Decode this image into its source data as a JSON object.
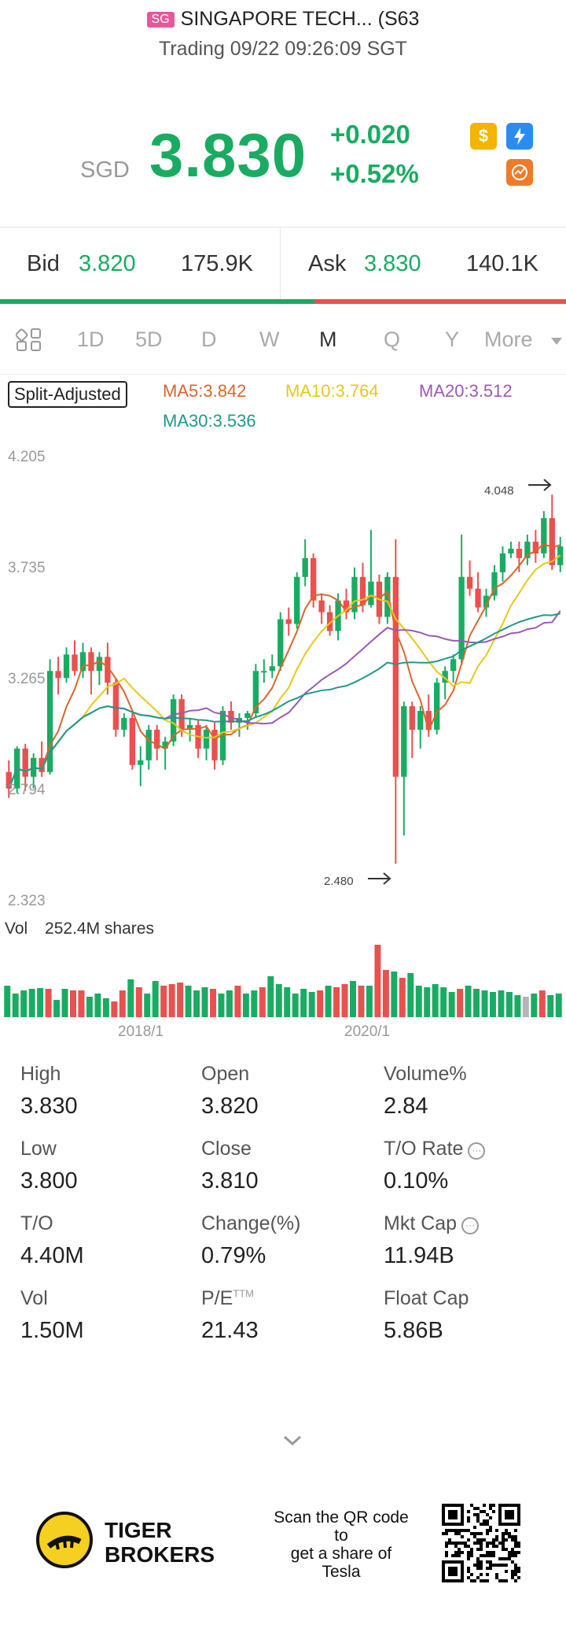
{
  "header": {
    "market_badge": "SG",
    "title": "SINGAPORE TECH... (S63",
    "status": "Trading 09/22 09:26:09 SGT"
  },
  "quote": {
    "currency": "SGD",
    "price": "3.830",
    "change": "+0.020",
    "change_pct": "+0.52%",
    "colors": {
      "up": "#1aab62",
      "down": "#e9504e"
    }
  },
  "icons": [
    "dollar-icon",
    "lightning-icon",
    "chart-icon"
  ],
  "bid_ask": {
    "bid_label": "Bid",
    "bid_price": "3.820",
    "bid_size": "175.9K",
    "ask_label": "Ask",
    "ask_price": "3.830",
    "ask_size": "140.1K",
    "bid_ratio": 0.555
  },
  "tabs": [
    "1D",
    "5D",
    "D",
    "W",
    "M",
    "Q",
    "Y",
    "More"
  ],
  "active_tab": "M",
  "indicators": {
    "split": "Split-Adjusted",
    "ma5": "MA5:3.842",
    "ma10": "MA10:3.764",
    "ma20": "MA20:3.512",
    "ma30": "MA30:3.536",
    "colors": {
      "ma5": "#d9662b",
      "ma10": "#e8c81a",
      "ma20": "#9b59b6",
      "ma30": "#1e9a8a"
    }
  },
  "chart": {
    "y_ticks": [
      "4.205",
      "3.735",
      "3.265",
      "2.794",
      "2.323"
    ],
    "high_marker": "4.048",
    "low_marker": "2.480",
    "x_ticks": [
      "2018/1",
      "2020/1"
    ],
    "volume_label": "Vol",
    "volume_value": "252.4M shares"
  },
  "chart_data": {
    "type": "candlestick",
    "ylim": [
      2.323,
      4.205
    ],
    "candles": [
      {
        "o": 2.87,
        "c": 2.8,
        "h": 2.92,
        "l": 2.76,
        "up": false
      },
      {
        "o": 2.8,
        "c": 2.97,
        "h": 2.98,
        "l": 2.78,
        "up": true
      },
      {
        "o": 2.97,
        "c": 2.85,
        "h": 2.99,
        "l": 2.79,
        "up": false
      },
      {
        "o": 2.85,
        "c": 2.93,
        "h": 2.95,
        "l": 2.8,
        "up": true
      },
      {
        "o": 2.93,
        "c": 2.87,
        "h": 3.0,
        "l": 2.85,
        "up": false
      },
      {
        "o": 2.87,
        "c": 3.3,
        "h": 3.35,
        "l": 2.86,
        "up": true
      },
      {
        "o": 3.3,
        "c": 3.27,
        "h": 3.36,
        "l": 3.2,
        "up": false
      },
      {
        "o": 3.27,
        "c": 3.37,
        "h": 3.4,
        "l": 3.25,
        "up": true
      },
      {
        "o": 3.37,
        "c": 3.3,
        "h": 3.43,
        "l": 3.28,
        "up": false
      },
      {
        "o": 3.3,
        "c": 3.38,
        "h": 3.42,
        "l": 3.27,
        "up": true
      },
      {
        "o": 3.38,
        "c": 3.3,
        "h": 3.4,
        "l": 3.2,
        "up": false
      },
      {
        "o": 3.3,
        "c": 3.36,
        "h": 3.38,
        "l": 3.24,
        "up": true
      },
      {
        "o": 3.36,
        "c": 3.25,
        "h": 3.42,
        "l": 3.2,
        "up": false
      },
      {
        "o": 3.25,
        "c": 3.05,
        "h": 3.27,
        "l": 3.02,
        "up": false
      },
      {
        "o": 3.05,
        "c": 3.1,
        "h": 3.12,
        "l": 3.02,
        "up": true
      },
      {
        "o": 3.1,
        "c": 2.9,
        "h": 3.12,
        "l": 2.88,
        "up": false
      },
      {
        "o": 2.9,
        "c": 2.92,
        "h": 2.98,
        "l": 2.81,
        "up": true
      },
      {
        "o": 2.92,
        "c": 3.05,
        "h": 3.07,
        "l": 2.88,
        "up": true
      },
      {
        "o": 3.05,
        "c": 2.97,
        "h": 3.07,
        "l": 2.92,
        "up": false
      },
      {
        "o": 2.97,
        "c": 3.0,
        "h": 3.02,
        "l": 2.88,
        "up": true
      },
      {
        "o": 3.0,
        "c": 3.18,
        "h": 3.2,
        "l": 2.98,
        "up": true
      },
      {
        "o": 3.18,
        "c": 3.05,
        "h": 3.2,
        "l": 3.02,
        "up": false
      },
      {
        "o": 3.05,
        "c": 3.07,
        "h": 3.1,
        "l": 3.0,
        "up": true
      },
      {
        "o": 3.07,
        "c": 2.97,
        "h": 3.09,
        "l": 2.93,
        "up": false
      },
      {
        "o": 2.97,
        "c": 3.05,
        "h": 3.07,
        "l": 2.92,
        "up": true
      },
      {
        "o": 3.05,
        "c": 2.92,
        "h": 3.08,
        "l": 2.88,
        "up": false
      },
      {
        "o": 2.92,
        "c": 3.13,
        "h": 3.15,
        "l": 2.9,
        "up": true
      },
      {
        "o": 3.13,
        "c": 3.08,
        "h": 3.17,
        "l": 3.05,
        "up": false
      },
      {
        "o": 3.08,
        "c": 3.1,
        "h": 3.12,
        "l": 3.02,
        "up": true
      },
      {
        "o": 3.1,
        "c": 3.12,
        "h": 3.13,
        "l": 3.05,
        "up": true
      },
      {
        "o": 3.12,
        "c": 3.3,
        "h": 3.33,
        "l": 3.1,
        "up": true
      },
      {
        "o": 3.3,
        "c": 3.3,
        "h": 3.35,
        "l": 3.25,
        "up": true
      },
      {
        "o": 3.3,
        "c": 3.32,
        "h": 3.37,
        "l": 3.27,
        "up": true
      },
      {
        "o": 3.32,
        "c": 3.52,
        "h": 3.55,
        "l": 3.3,
        "up": true
      },
      {
        "o": 3.52,
        "c": 3.5,
        "h": 3.57,
        "l": 3.45,
        "up": false
      },
      {
        "o": 3.5,
        "c": 3.7,
        "h": 3.72,
        "l": 3.48,
        "up": true
      },
      {
        "o": 3.7,
        "c": 3.78,
        "h": 3.86,
        "l": 3.66,
        "up": true
      },
      {
        "o": 3.78,
        "c": 3.6,
        "h": 3.8,
        "l": 3.57,
        "up": false
      },
      {
        "o": 3.6,
        "c": 3.55,
        "h": 3.63,
        "l": 3.5,
        "up": false
      },
      {
        "o": 3.55,
        "c": 3.47,
        "h": 3.58,
        "l": 3.45,
        "up": false
      },
      {
        "o": 3.47,
        "c": 3.6,
        "h": 3.63,
        "l": 3.43,
        "up": true
      },
      {
        "o": 3.6,
        "c": 3.55,
        "h": 3.65,
        "l": 3.52,
        "up": false
      },
      {
        "o": 3.55,
        "c": 3.7,
        "h": 3.74,
        "l": 3.52,
        "up": true
      },
      {
        "o": 3.7,
        "c": 3.58,
        "h": 3.76,
        "l": 3.55,
        "up": false
      },
      {
        "o": 3.58,
        "c": 3.68,
        "h": 3.9,
        "l": 3.57,
        "up": true
      },
      {
        "o": 3.68,
        "c": 3.53,
        "h": 3.71,
        "l": 3.5,
        "up": false
      },
      {
        "o": 3.53,
        "c": 3.7,
        "h": 3.72,
        "l": 3.5,
        "up": true
      },
      {
        "o": 3.7,
        "c": 2.85,
        "h": 3.86,
        "l": 2.48,
        "up": false
      },
      {
        "o": 2.85,
        "c": 3.15,
        "h": 3.17,
        "l": 2.6,
        "up": true
      },
      {
        "o": 3.15,
        "c": 3.05,
        "h": 3.17,
        "l": 2.93,
        "up": false
      },
      {
        "o": 3.05,
        "c": 3.13,
        "h": 3.15,
        "l": 2.97,
        "up": true
      },
      {
        "o": 3.13,
        "c": 3.05,
        "h": 3.2,
        "l": 3.02,
        "up": false
      },
      {
        "o": 3.05,
        "c": 3.25,
        "h": 3.27,
        "l": 3.03,
        "up": true
      },
      {
        "o": 3.25,
        "c": 3.3,
        "h": 3.32,
        "l": 3.18,
        "up": true
      },
      {
        "o": 3.3,
        "c": 3.35,
        "h": 3.37,
        "l": 3.25,
        "up": true
      },
      {
        "o": 3.35,
        "c": 3.7,
        "h": 3.88,
        "l": 3.33,
        "up": true
      },
      {
        "o": 3.7,
        "c": 3.65,
        "h": 3.77,
        "l": 3.62,
        "up": false
      },
      {
        "o": 3.65,
        "c": 3.57,
        "h": 3.72,
        "l": 3.55,
        "up": false
      },
      {
        "o": 3.57,
        "c": 3.62,
        "h": 3.65,
        "l": 3.53,
        "up": true
      },
      {
        "o": 3.62,
        "c": 3.72,
        "h": 3.75,
        "l": 3.6,
        "up": true
      },
      {
        "o": 3.72,
        "c": 3.8,
        "h": 3.83,
        "l": 3.68,
        "up": true
      },
      {
        "o": 3.8,
        "c": 3.82,
        "h": 3.85,
        "l": 3.78,
        "up": true
      },
      {
        "o": 3.82,
        "c": 3.78,
        "h": 3.85,
        "l": 3.72,
        "up": false
      },
      {
        "o": 3.78,
        "c": 3.85,
        "h": 3.88,
        "l": 3.75,
        "up": true
      },
      {
        "o": 3.85,
        "c": 3.8,
        "h": 3.9,
        "l": 3.76,
        "up": false
      },
      {
        "o": 3.8,
        "c": 3.95,
        "h": 3.98,
        "l": 3.78,
        "up": true
      },
      {
        "o": 3.95,
        "c": 3.75,
        "h": 4.05,
        "l": 3.73,
        "up": false
      },
      {
        "o": 3.75,
        "c": 3.83,
        "h": 3.87,
        "l": 3.72,
        "up": true
      }
    ],
    "volume_colors": [
      "up",
      "down"
    ]
  },
  "stats": [
    {
      "label": "High",
      "value": "3.830"
    },
    {
      "label": "Open",
      "value": "3.820"
    },
    {
      "label": "Volume%",
      "value": "2.84"
    },
    {
      "label": "Low",
      "value": "3.800"
    },
    {
      "label": "Close",
      "value": "3.810"
    },
    {
      "label": "T/O Rate",
      "value": "0.10%"
    },
    {
      "label": "T/O",
      "value": "4.40M"
    },
    {
      "label": "Change(%)",
      "value": "0.79%"
    },
    {
      "label": "Mkt Cap",
      "value": "11.94B"
    },
    {
      "label": "Vol",
      "value": "1.50M"
    },
    {
      "label": "P/E",
      "value": "21.43"
    },
    {
      "label": "Float Cap",
      "value": "5.86B"
    }
  ],
  "pe_sup": "TTM",
  "footer": {
    "brand_line1": "TIGER",
    "brand_line2": "BROKERS",
    "qr_line1": "Scan the QR code",
    "qr_line2": "to",
    "qr_line3": "get a share of",
    "qr_line4": "Tesla"
  }
}
